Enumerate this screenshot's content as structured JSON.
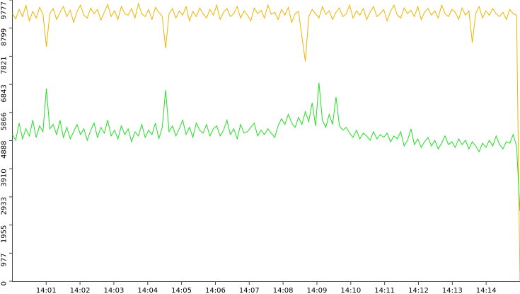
{
  "chart_data": {
    "type": "line",
    "xlim": [
      "14:00",
      "14:15"
    ],
    "xticks": [
      "14:01",
      "14:02",
      "14:03",
      "14:04",
      "14:05",
      "14:06",
      "14:07",
      "14:08",
      "14:09",
      "14:10",
      "14:11",
      "14:12",
      "14:13",
      "14:14"
    ],
    "ylim": [
      0,
      9777
    ],
    "yticks": [
      0,
      977,
      1955,
      2933,
      3910,
      4888,
      5866,
      6843,
      7821,
      8799,
      9777
    ],
    "series": [
      {
        "color": "#f0b400",
        "values": [
          9310,
          9120,
          9450,
          9200,
          9600,
          9050,
          9380,
          9150,
          9520,
          9280,
          8150,
          9300,
          9480,
          9100,
          9350,
          9550,
          9200,
          9420,
          9000,
          9380,
          9600,
          9250,
          9150,
          9500,
          9300,
          9450,
          9080,
          9350,
          9620,
          9200,
          9400,
          9100,
          9550,
          9300,
          9250,
          9480,
          9150,
          9650,
          9300,
          9200,
          9450,
          9100,
          9520,
          9350,
          9200,
          8100,
          9300,
          9480,
          9150,
          9400,
          9250,
          9550,
          9050,
          9380,
          9200,
          9500,
          9300,
          9150,
          9450,
          9250,
          9600,
          9100,
          9350,
          9480,
          9200,
          9300,
          9550,
          9150,
          9400,
          9250,
          9050,
          9500,
          9300,
          9420,
          9150,
          9600,
          9280,
          9350,
          9100,
          9450,
          9250,
          9520,
          9000,
          9300,
          9380,
          8500,
          7650,
          9200,
          9450,
          9300,
          9150,
          9550,
          9280,
          9400,
          9100,
          9350,
          9500,
          9200,
          9300,
          9600,
          9150,
          9400,
          9250,
          9480,
          9100,
          9350,
          9550,
          9200,
          9300,
          9450,
          9050,
          9380,
          9600,
          9250,
          9150,
          9500,
          9300,
          9420,
          9200,
          9550,
          9100,
          9350,
          9480,
          9250,
          9400,
          9150,
          9600,
          9300,
          9200,
          9450,
          9350,
          9100,
          9500,
          9250,
          9400,
          8300,
          9300,
          9550,
          9150,
          9400,
          9250,
          9480,
          9300,
          9200,
          9350,
          9100,
          9450,
          9300,
          9250,
          0
        ]
      },
      {
        "color": "#22e022",
        "values": [
          5100,
          4900,
          5500,
          4950,
          5300,
          5050,
          5600,
          5000,
          5400,
          5200,
          6700,
          5300,
          5450,
          5100,
          5600,
          5000,
          5350,
          4950,
          5200,
          5450,
          5100,
          5300,
          4900,
          5250,
          5500,
          5000,
          5350,
          5150,
          5600,
          5050,
          5250,
          4950,
          5400,
          5100,
          5300,
          4850,
          5200,
          5050,
          5450,
          5000,
          5250,
          5100,
          5500,
          4950,
          5350,
          6650,
          5200,
          5400,
          5050,
          5300,
          5600,
          5100,
          5350,
          5000,
          5500,
          5250,
          5150,
          5450,
          5050,
          5300,
          5400,
          5050,
          5250,
          5600,
          5100,
          5300,
          4950,
          5450,
          5150,
          5200,
          5350,
          5500,
          5050,
          5250,
          5100,
          5300,
          5150,
          5000,
          5400,
          5650,
          5450,
          5800,
          5500,
          5350,
          5700,
          5450,
          5900,
          5550,
          6200,
          5400,
          6900,
          5600,
          5350,
          5800,
          5450,
          6400,
          5400,
          5250,
          5350,
          5150,
          5000,
          5250,
          4950,
          5150,
          5050,
          4900,
          5200,
          4950,
          5100,
          5000,
          5150,
          4850,
          5050,
          4950,
          5200,
          4700,
          4900,
          5300,
          4750,
          4950,
          4650,
          4850,
          5000,
          4700,
          4900,
          4600,
          4800,
          5050,
          4750,
          4850,
          4650,
          4950,
          4750,
          4900,
          4600,
          4850,
          4700,
          4500,
          4800,
          4650,
          4900,
          4700,
          5050,
          4750,
          4600,
          4850,
          4800,
          5100,
          4700,
          2438
        ]
      }
    ]
  }
}
